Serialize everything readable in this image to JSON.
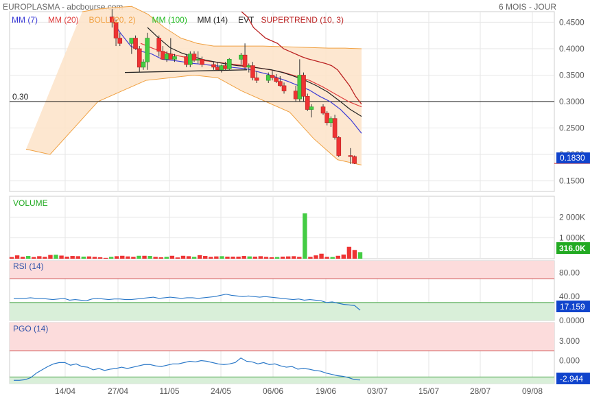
{
  "header": {
    "title": "EUROPLASMA - abcbourse.com",
    "period": "6 MOIS - JOUR"
  },
  "legend": [
    {
      "label": "MM (7)",
      "color": "#3b3bd6"
    },
    {
      "label": "MM (20)",
      "color": "#e03c3c"
    },
    {
      "label": "BOLL (20, 2)",
      "color": "#f0a040"
    },
    {
      "label": "MM (100)",
      "color": "#22bb22"
    },
    {
      "label": "MM (14)",
      "color": "#222222"
    },
    {
      "label": "EVT",
      "color": "#222222"
    },
    {
      "label": "SUPERTREND (10, 3)",
      "color": "#bb2222"
    }
  ],
  "x_axis_labels": [
    "14/04",
    "27/04",
    "11/05",
    "24/05",
    "06/06",
    "19/06",
    "03/07",
    "15/07",
    "28/07",
    "09/08"
  ],
  "price_panel": {
    "ticks": [
      "0.4500",
      "0.4000",
      "0.3500",
      "0.3000",
      "0.2500",
      "0.2000",
      "0.1500"
    ],
    "tick_values": [
      0.45,
      0.4,
      0.35,
      0.3,
      0.25,
      0.2,
      0.15
    ],
    "ylim": [
      0.13,
      0.47
    ],
    "reference_line": {
      "label": "0.30",
      "value": 0.3
    },
    "last_value": "0.1830"
  },
  "volume_panel": {
    "label": "VOLUME",
    "ticks": [
      "2 000K",
      "1 000K"
    ],
    "tick_values": [
      2000,
      1000
    ],
    "ylim": [
      0,
      3000
    ],
    "last_value": "316.0K"
  },
  "rsi_panel": {
    "label": "RSI (14)",
    "ticks": [
      "80.00",
      "40.00",
      "0.0000"
    ],
    "tick_values": [
      80,
      40,
      0
    ],
    "ylim": [
      0,
      100
    ],
    "overbought": 70,
    "oversold": 30,
    "last_value": "17.159"
  },
  "pgo_panel": {
    "label": "PGO (14)",
    "ticks": [
      "3.000",
      "0.000"
    ],
    "tick_values": [
      3,
      0
    ],
    "ylim": [
      -3.5,
      5.8
    ],
    "upper_band": 1.5,
    "lower_band": -2.5,
    "last_value": "-2.944"
  },
  "colors": {
    "up": "#44cc44",
    "down": "#ee3333",
    "rsi_line": "#2a78c8",
    "pgo_line": "#2a78c8",
    "last_value_bg": "#1144cc",
    "volume_value_bg": "#22aa22",
    "zone_red": "#fcdcdc",
    "zone_green": "#d9efd9",
    "grid": "#e6e6e6"
  },
  "chart_data": {
    "type": "candlestick",
    "title": "EUROPLASMA - abcbourse.com",
    "candles": [
      {
        "x": "2023-04-26",
        "o": 0.46,
        "h": 0.475,
        "l": 0.44,
        "c": 0.45
      },
      {
        "x": "2023-04-27",
        "o": 0.45,
        "h": 0.455,
        "l": 0.405,
        "c": 0.42
      },
      {
        "x": "2023-04-28",
        "o": 0.42,
        "h": 0.43,
        "l": 0.405,
        "c": 0.41
      },
      {
        "x": "2023-05-01",
        "o": 0.41,
        "h": 0.42,
        "l": 0.39,
        "c": 0.42
      },
      {
        "x": "2023-05-02",
        "o": 0.42,
        "h": 0.425,
        "l": 0.398,
        "c": 0.4
      },
      {
        "x": "2023-05-03",
        "o": 0.4,
        "h": 0.405,
        "l": 0.355,
        "c": 0.365
      },
      {
        "x": "2023-05-04",
        "o": 0.365,
        "h": 0.38,
        "l": 0.36,
        "c": 0.375
      },
      {
        "x": "2023-05-05",
        "o": 0.375,
        "h": 0.43,
        "l": 0.36,
        "c": 0.42
      },
      {
        "x": "2023-05-08",
        "o": 0.42,
        "h": 0.425,
        "l": 0.385,
        "c": 0.395
      },
      {
        "x": "2023-05-09",
        "o": 0.395,
        "h": 0.405,
        "l": 0.38,
        "c": 0.38
      },
      {
        "x": "2023-05-10",
        "o": 0.38,
        "h": 0.395,
        "l": 0.375,
        "c": 0.39
      },
      {
        "x": "2023-05-11",
        "o": 0.39,
        "h": 0.42,
        "l": 0.38,
        "c": 0.38
      },
      {
        "x": "2023-05-12",
        "o": 0.38,
        "h": 0.39,
        "l": 0.375,
        "c": 0.385
      },
      {
        "x": "2023-05-15",
        "o": 0.385,
        "h": 0.39,
        "l": 0.365,
        "c": 0.37
      },
      {
        "x": "2023-05-16",
        "o": 0.37,
        "h": 0.395,
        "l": 0.365,
        "c": 0.39
      },
      {
        "x": "2023-05-17",
        "o": 0.39,
        "h": 0.395,
        "l": 0.375,
        "c": 0.378
      },
      {
        "x": "2023-05-18",
        "o": 0.378,
        "h": 0.395,
        "l": 0.372,
        "c": 0.38
      },
      {
        "x": "2023-05-19",
        "o": 0.38,
        "h": 0.385,
        "l": 0.365,
        "c": 0.37
      },
      {
        "x": "2023-05-22",
        "o": 0.37,
        "h": 0.375,
        "l": 0.36,
        "c": 0.365
      },
      {
        "x": "2023-05-23",
        "o": 0.365,
        "h": 0.375,
        "l": 0.358,
        "c": 0.36
      },
      {
        "x": "2023-05-24",
        "o": 0.36,
        "h": 0.37,
        "l": 0.355,
        "c": 0.368
      },
      {
        "x": "2023-05-25",
        "o": 0.368,
        "h": 0.375,
        "l": 0.36,
        "c": 0.362
      },
      {
        "x": "2023-05-26",
        "o": 0.362,
        "h": 0.382,
        "l": 0.36,
        "c": 0.38
      },
      {
        "x": "2023-05-29",
        "o": 0.38,
        "h": 0.392,
        "l": 0.37,
        "c": 0.388
      },
      {
        "x": "2023-05-30",
        "o": 0.388,
        "h": 0.41,
        "l": 0.36,
        "c": 0.365
      },
      {
        "x": "2023-05-31",
        "o": 0.365,
        "h": 0.372,
        "l": 0.355,
        "c": 0.368
      },
      {
        "x": "2023-06-01",
        "o": 0.368,
        "h": 0.375,
        "l": 0.34,
        "c": 0.345
      },
      {
        "x": "2023-06-02",
        "o": 0.345,
        "h": 0.358,
        "l": 0.335,
        "c": 0.34
      },
      {
        "x": "2023-06-05",
        "o": 0.34,
        "h": 0.355,
        "l": 0.335,
        "c": 0.35
      },
      {
        "x": "2023-06-06",
        "o": 0.35,
        "h": 0.358,
        "l": 0.34,
        "c": 0.345
      },
      {
        "x": "2023-06-07",
        "o": 0.345,
        "h": 0.352,
        "l": 0.335,
        "c": 0.338
      },
      {
        "x": "2023-06-08",
        "o": 0.338,
        "h": 0.348,
        "l": 0.328,
        "c": 0.33
      },
      {
        "x": "2023-06-09",
        "o": 0.33,
        "h": 0.336,
        "l": 0.315,
        "c": 0.32
      },
      {
        "x": "2023-06-12",
        "o": 0.32,
        "h": 0.33,
        "l": 0.3,
        "c": 0.305
      },
      {
        "x": "2023-06-13",
        "o": 0.305,
        "h": 0.38,
        "l": 0.3,
        "c": 0.35
      },
      {
        "x": "2023-06-14",
        "o": 0.35,
        "h": 0.355,
        "l": 0.3,
        "c": 0.31
      },
      {
        "x": "2023-06-15",
        "o": 0.31,
        "h": 0.315,
        "l": 0.282,
        "c": 0.285
      },
      {
        "x": "2023-06-16",
        "o": 0.285,
        "h": 0.295,
        "l": 0.27,
        "c": 0.29
      },
      {
        "x": "2023-06-19",
        "o": 0.29,
        "h": 0.295,
        "l": 0.275,
        "c": 0.278
      },
      {
        "x": "2023-06-20",
        "o": 0.278,
        "h": 0.282,
        "l": 0.255,
        "c": 0.26
      },
      {
        "x": "2023-06-21",
        "o": 0.26,
        "h": 0.272,
        "l": 0.252,
        "c": 0.268
      },
      {
        "x": "2023-06-22",
        "o": 0.268,
        "h": 0.275,
        "l": 0.228,
        "c": 0.232
      },
      {
        "x": "2023-06-23",
        "o": 0.232,
        "h": 0.235,
        "l": 0.195,
        "c": 0.198
      },
      {
        "x": "2023-06-26",
        "o": 0.198,
        "h": 0.212,
        "l": 0.182,
        "c": 0.196
      },
      {
        "x": "2023-06-27",
        "o": 0.196,
        "h": 0.198,
        "l": 0.182,
        "c": 0.183
      }
    ],
    "volume_k": [
      80,
      160,
      90,
      130,
      80,
      120,
      90,
      180,
      190,
      150,
      100,
      130,
      120,
      100,
      110,
      90,
      70,
      40,
      90,
      120,
      140,
      110,
      90,
      140,
      140,
      130,
      90,
      70,
      90,
      140,
      60,
      140,
      120,
      90,
      170,
      130,
      90,
      110,
      120,
      100,
      100,
      100,
      130,
      110,
      100,
      120,
      90,
      70,
      80,
      100,
      110,
      120,
      90,
      2180,
      90,
      160,
      240,
      90,
      80,
      140,
      200,
      570,
      420,
      316
    ],
    "rsi": [
      37,
      37,
      37,
      38,
      37,
      37,
      36,
      35,
      36,
      37,
      34,
      35,
      34,
      33,
      36,
      37,
      36,
      35,
      36,
      36,
      35,
      35,
      36,
      37,
      38,
      39,
      37,
      38,
      39,
      38,
      37,
      38,
      38,
      37,
      38,
      39,
      40,
      42,
      44,
      42,
      41,
      40,
      41,
      40,
      39,
      40,
      39,
      38,
      37,
      36,
      35,
      36,
      34,
      35,
      34,
      33,
      30,
      31,
      29,
      27,
      26,
      25,
      17.159
    ],
    "pgo": [
      -3.0,
      -3.0,
      -2.9,
      -2.6,
      -1.9,
      -1.4,
      -0.9,
      -0.5,
      -0.3,
      -0.3,
      -0.7,
      -0.5,
      -0.9,
      -1.0,
      -1.4,
      -1.2,
      -1.5,
      -1.3,
      -1.2,
      -1.0,
      -1.2,
      -1.0,
      -0.8,
      -0.6,
      -0.6,
      -0.8,
      -0.9,
      -0.7,
      -0.5,
      -0.5,
      -0.3,
      -0.1,
      -0.2,
      0.0,
      -0.1,
      -0.3,
      -0.5,
      -0.6,
      -0.5,
      -0.3,
      0.4,
      -0.1,
      -0.2,
      -0.5,
      -0.3,
      -0.6,
      -0.5,
      -0.8,
      -1.0,
      -0.9,
      -1.3,
      -1.2,
      -1.3,
      -1.5,
      -1.6,
      -1.9,
      -2.1,
      -2.3,
      -2.4,
      -2.6,
      -2.9,
      -2.944
    ],
    "bollinger_upper": [
      0.47,
      0.475,
      0.478,
      0.48,
      0.465,
      0.44,
      0.42,
      0.41,
      0.405,
      0.405,
      0.405,
      0.405,
      0.404,
      0.403,
      0.402,
      0.401,
      0.401,
      0.4
    ],
    "bollinger_lower": [
      0.21,
      0.2,
      0.25,
      0.3,
      0.32,
      0.34,
      0.345,
      0.35,
      0.345,
      0.32,
      0.3,
      0.28,
      0.23,
      0.19,
      0.18
    ],
    "ma7": [
      0.46,
      0.43,
      0.405,
      0.395,
      0.39,
      0.38,
      0.378,
      0.375,
      0.372,
      0.37,
      0.368,
      0.366,
      0.364,
      0.362,
      0.357,
      0.352,
      0.345,
      0.338,
      0.33,
      0.322,
      0.31,
      0.3,
      0.285,
      0.265,
      0.24
    ],
    "ma20": [
      0.41,
      0.4,
      0.392,
      0.386,
      0.381,
      0.377,
      0.374,
      0.371,
      0.368,
      0.364,
      0.36,
      0.355,
      0.348,
      0.34,
      0.328,
      0.314,
      0.3,
      0.29
    ],
    "ma14": [
      0.44,
      0.42,
      0.402,
      0.392,
      0.385,
      0.379,
      0.375,
      0.371,
      0.368,
      0.366,
      0.363,
      0.36,
      0.355,
      0.348,
      0.34,
      0.33,
      0.318,
      0.302,
      0.285,
      0.272
    ],
    "supertrend": [
      0.47,
      0.46,
      0.44,
      0.43,
      0.42,
      0.415,
      0.41,
      0.4,
      0.395,
      0.39,
      0.385,
      0.381,
      0.378,
      0.375,
      0.372,
      0.368,
      0.36,
      0.345,
      0.33,
      0.31,
      0.295
    ],
    "evt_line": [
      0.355,
      0.36
    ],
    "reference_line": 0.3,
    "ylim": [
      0.13,
      0.47
    ]
  }
}
